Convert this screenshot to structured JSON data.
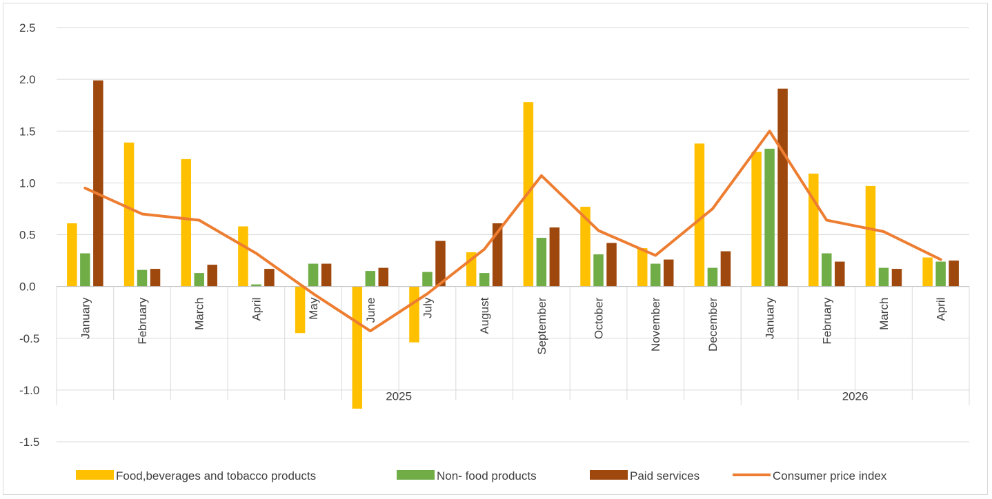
{
  "chart_data": {
    "type": "bar",
    "title": "",
    "xlabel": "",
    "ylabel": "",
    "ylim": [
      -1.5,
      2.5
    ],
    "y_ticks": [
      "2.5",
      "2.0",
      "1.5",
      "1.0",
      "0.5",
      "0.0",
      "-0.5",
      "-1.0",
      "-1.5"
    ],
    "y_tick_values": [
      2.5,
      2.0,
      1.5,
      1.0,
      0.5,
      0.0,
      -0.5,
      -1.0,
      -1.5
    ],
    "grid": true,
    "legend_position": "bottom",
    "categories": [
      "January",
      "February",
      "March",
      "April",
      "May",
      "June",
      "July",
      "August",
      "September",
      "October",
      "November",
      "December",
      "January",
      "February",
      "March",
      "April"
    ],
    "groups": [
      {
        "label": "2025",
        "count": 12
      },
      {
        "label": "2026",
        "count": 4
      }
    ],
    "series": [
      {
        "name": "Food,beverages and tobacco products",
        "type": "bar",
        "color": "#FFC000",
        "values": [
          0.61,
          1.39,
          1.23,
          0.58,
          -0.45,
          -1.18,
          -0.54,
          0.33,
          1.78,
          0.77,
          0.37,
          1.38,
          1.3,
          1.09,
          0.97,
          0.28
        ]
      },
      {
        "name": "Non- food products",
        "type": "bar",
        "color": "#70AD47",
        "values": [
          0.32,
          0.16,
          0.13,
          0.02,
          0.22,
          0.15,
          0.14,
          0.13,
          0.47,
          0.31,
          0.22,
          0.18,
          1.33,
          0.32,
          0.18,
          0.24
        ]
      },
      {
        "name": "Paid services",
        "type": "bar",
        "color": "#9E480E",
        "values": [
          1.99,
          0.17,
          0.21,
          0.17,
          0.22,
          0.18,
          0.44,
          0.61,
          0.57,
          0.42,
          0.26,
          0.34,
          1.91,
          0.24,
          0.17,
          0.25
        ]
      },
      {
        "name": "Consumer price index",
        "type": "line",
        "color": "#ED7D31",
        "values": [
          0.95,
          0.7,
          0.64,
          0.32,
          -0.07,
          -0.43,
          -0.07,
          0.36,
          1.07,
          0.54,
          0.3,
          0.75,
          1.5,
          0.64,
          0.53,
          0.26
        ]
      }
    ]
  }
}
